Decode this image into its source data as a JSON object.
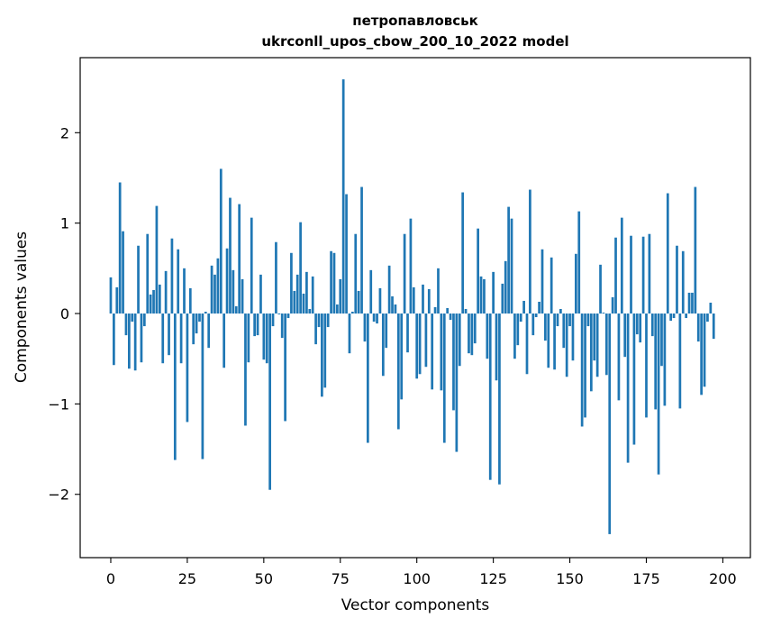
{
  "chart_data": {
    "type": "bar",
    "title_line1": "петропавловськ",
    "title_line2": "ukrconll_upos_cbow_200_10_2022 model",
    "xlabel": "Vector components",
    "ylabel": "Components values",
    "xlim": [
      -10,
      209
    ],
    "ylim": [
      -2.7,
      2.83
    ],
    "xticks": [
      0,
      25,
      50,
      75,
      100,
      125,
      150,
      175,
      200
    ],
    "yticks": [
      -2,
      -1,
      0,
      1,
      2
    ],
    "ytick_labels": [
      "−2",
      "−1",
      "0",
      "1",
      "2"
    ],
    "bar_color": "#1f77b4",
    "values": [
      0.4,
      -0.57,
      0.29,
      1.45,
      0.91,
      -0.24,
      -0.61,
      -0.09,
      -0.63,
      0.75,
      -0.54,
      -0.14,
      0.88,
      0.21,
      0.26,
      1.19,
      0.32,
      -0.55,
      0.47,
      -0.46,
      0.83,
      -1.62,
      0.71,
      -0.55,
      0.5,
      -1.2,
      0.28,
      -0.34,
      -0.22,
      -0.09,
      -1.61,
      0.02,
      -0.38,
      0.53,
      0.43,
      0.61,
      1.6,
      -0.6,
      0.72,
      1.28,
      0.48,
      0.08,
      1.21,
      0.38,
      -1.24,
      -0.54,
      1.06,
      -0.25,
      -0.24,
      0.43,
      -0.51,
      -0.55,
      -1.95,
      -0.14,
      0.79,
      -0.01,
      -0.27,
      -1.19,
      -0.05,
      0.67,
      0.25,
      0.43,
      1.01,
      0.22,
      0.46,
      0.05,
      0.41,
      -0.34,
      -0.15,
      -0.92,
      -0.82,
      -0.15,
      0.69,
      0.67,
      0.1,
      0.38,
      2.59,
      1.32,
      -0.44,
      0.02,
      0.88,
      0.25,
      1.4,
      -0.31,
      -1.43,
      0.48,
      -0.09,
      -0.11,
      0.28,
      -0.69,
      -0.38,
      0.53,
      0.19,
      0.1,
      -1.28,
      -0.95,
      0.88,
      -0.43,
      1.05,
      0.29,
      -0.72,
      -0.67,
      0.32,
      -0.59,
      0.27,
      -0.84,
      0.07,
      0.5,
      -0.85,
      -1.43,
      0.06,
      -0.07,
      -1.07,
      -1.53,
      -0.58,
      1.34,
      0.05,
      -0.44,
      -0.46,
      -0.33,
      0.94,
      0.41,
      0.38,
      -0.5,
      -1.84,
      0.46,
      -0.74,
      -1.89,
      0.33,
      0.58,
      1.18,
      1.05,
      -0.5,
      -0.35,
      -0.09,
      0.14,
      -0.67,
      1.37,
      -0.24,
      -0.04,
      0.13,
      0.71,
      -0.3,
      -0.6,
      0.62,
      -0.62,
      -0.14,
      0.05,
      -0.38,
      -0.7,
      -0.14,
      -0.52,
      0.66,
      1.13,
      -1.25,
      -1.15,
      -0.14,
      -0.86,
      -0.52,
      -0.7,
      0.54,
      0.01,
      -0.68,
      -2.44,
      0.18,
      0.84,
      -0.96,
      1.06,
      -0.48,
      -1.65,
      0.86,
      -1.45,
      -0.23,
      -0.32,
      0.85,
      -1.15,
      0.88,
      -0.25,
      -1.06,
      -1.78,
      -0.58,
      -1.02,
      1.33,
      -0.08,
      -0.05,
      0.75,
      -1.05,
      0.69,
      -0.05,
      0.23,
      0.23,
      1.4,
      -0.31,
      -0.9,
      -0.81,
      -0.09,
      0.12,
      -0.28
    ]
  }
}
